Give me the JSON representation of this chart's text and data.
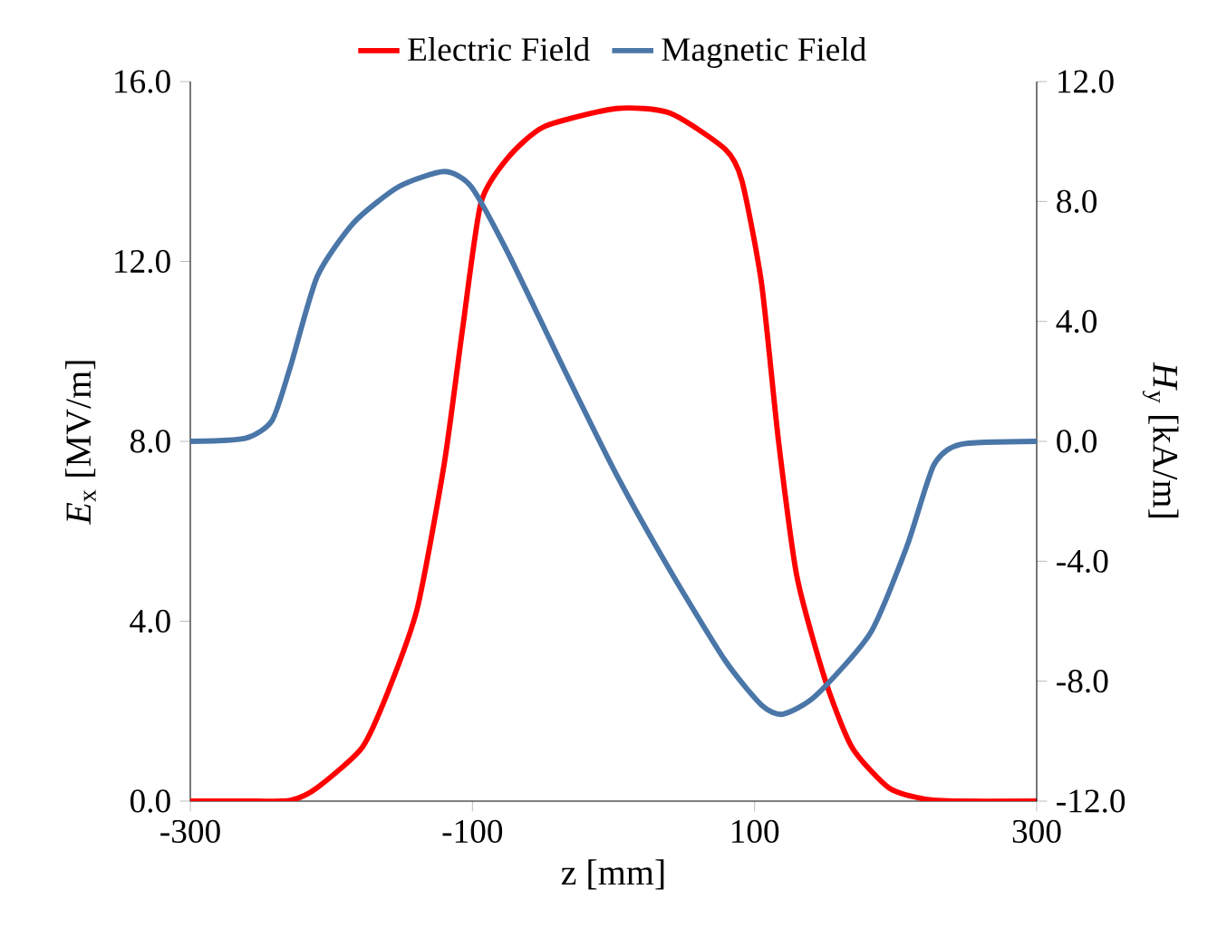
{
  "chart_data": {
    "type": "line",
    "xlabel": "z [mm]",
    "ylabel": "*E*$_{x}$ [MV/m]",
    "y2label": "*H*$_{y}$ [kA/m]",
    "legend": "top",
    "grid": false,
    "marker": "none",
    "line_style": "solid",
    "xlim": [
      -300,
      300
    ],
    "xticks": [
      -300,
      -100,
      100,
      300
    ],
    "ylim": [
      0,
      16
    ],
    "yticks": [
      {
        "value": 0,
        "label": "0.0"
      },
      {
        "value": 4,
        "label": "4.0"
      },
      {
        "value": 8,
        "label": "8.0"
      },
      {
        "value": 12,
        "label": "12.0"
      },
      {
        "value": 16,
        "label": "16.0"
      }
    ],
    "y2lim": [
      -12,
      12
    ],
    "y2ticks": [
      {
        "value": -12,
        "label": "-12.0"
      },
      {
        "value": -8,
        "label": "-8.0"
      },
      {
        "value": -4,
        "label": "-4.0"
      },
      {
        "value": 0,
        "label": "0.0"
      },
      {
        "value": 4,
        "label": "4.0"
      },
      {
        "value": 8,
        "label": "8.0"
      },
      {
        "value": 12,
        "label": "12.0"
      }
    ],
    "series": [
      {
        "name": "Electric Field",
        "color": "#ff0000",
        "x": [
          -300,
          -260,
          -229,
          -210,
          -178,
          -159,
          -139,
          -120,
          -107,
          -94,
          -75,
          -49,
          2,
          40,
          79,
          91,
          105,
          117,
          130,
          150,
          169,
          195,
          220,
          246,
          300
        ],
        "values": [
          0,
          0,
          0.02,
          0.3,
          1.2,
          2.5,
          4.3,
          7.5,
          10.5,
          13.3,
          14.3,
          15.0,
          15.4,
          15.3,
          14.5,
          13.8,
          11.5,
          8.0,
          5.0,
          2.7,
          1.2,
          0.3,
          0.05,
          0,
          0
        ]
      },
      {
        "name": "Magnetic Field",
        "color": "#4a76a8",
        "axis": "y2",
        "x": [
          -300,
          -261,
          -242,
          -229,
          -210,
          -184,
          -152,
          -120,
          -101,
          -75,
          -36,
          2,
          40,
          79,
          105,
          120,
          143,
          182,
          208,
          227,
          246,
          300
        ],
        "values": [
          0,
          0.1,
          0.7,
          2.5,
          5.5,
          7.3,
          8.5,
          9.0,
          8.5,
          6.3,
          2.5,
          -1.1,
          -4.3,
          -7.3,
          -8.8,
          -9.1,
          -8.5,
          -6.4,
          -3.5,
          -0.8,
          -0.1,
          0
        ]
      }
    ]
  }
}
